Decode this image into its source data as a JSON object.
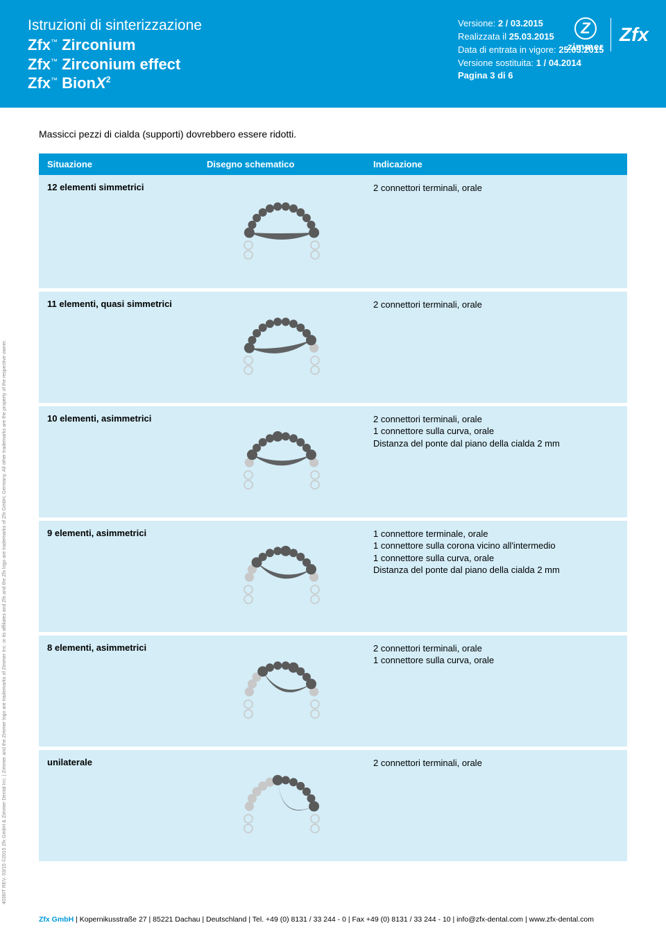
{
  "header": {
    "title": "Istruzioni di sinterizzazione",
    "products": [
      "Zfx™ Zirconium",
      "Zfx™ Zirconium effect",
      "Zfx™ BionX²"
    ],
    "version_label": "Versione:",
    "version": "2 / 03.2015",
    "realizzata_label": "Realizzata il",
    "realizzata": "25.03.2015",
    "entrata_label": "Data di entrata in vigore:",
    "entrata": "25.03.2015",
    "sost_label": "Versione sostituita:",
    "sost": "1 / 04.2014",
    "pagina": "Pagina 3 di 6",
    "zimmer": "zimmer",
    "zfx": "Zfx"
  },
  "intro": "Massicci pezzi di cialda (supporti) dovrebbero essere ridotti.",
  "table_headers": {
    "sit": "Situazione",
    "diag": "Disegno schematico",
    "ind": "Indicazione"
  },
  "rows": [
    {
      "situazione": "12 elementi simmetrici",
      "indicazione": "2 connettori terminali, orale",
      "diagram": "sym12"
    },
    {
      "situazione": "11 elementi, quasi simmetrici",
      "indicazione": "2 connettori terminali, orale",
      "diagram": "sym11"
    },
    {
      "situazione": "10 elementi, asimmetrici",
      "indicazione": "2 connettori terminali, orale\n1 connettore sulla curva, orale\nDistanza del ponte dal piano della cialda 2 mm",
      "diagram": "asym10"
    },
    {
      "situazione": "9 elementi, asimmetrici",
      "indicazione": "1 connettore terminale, orale\n1 connettore sulla corona vicino all'intermedio\n1 connettore sulla curva, orale\nDistanza del ponte dal piano della cialda 2 mm",
      "diagram": "asym9"
    },
    {
      "situazione": "8 elementi, asimmetrici",
      "indicazione": "2 connettori terminali, orale\n1 connettore sulla curva, orale",
      "diagram": "asym8"
    },
    {
      "situazione": "unilaterale",
      "indicazione": "2 connettori terminali, orale",
      "diagram": "uni"
    }
  ],
  "colors": {
    "brand": "#0099d8",
    "row_bg": "#d4edf7",
    "arch_light": "#c8c8c8",
    "arch_dark": "#5a5a5a",
    "arch_outline": "#ffffff"
  },
  "side_text": "4036IT REV. 03/15 ©2015 Zfx GmbH & Zimmer Dental Inc. | Zimmer and the Zimmer logo are trademarks of Zimmer Inc. or its affiliates and Zfx and the Zfx logo are trademarks of Zfx GmbH, Germany. All other trademarks are the property of the respective owner.",
  "footer": {
    "company": "Zfx GmbH",
    "rest": " | Kopernikusstraße 27 | 85221 Dachau | Deutschland | Tel. +49 (0) 8131 / 33 244 - 0 | Fax +49 (0) 8131 / 33 244 - 10 | info@zfx-dental.com | www.zfx-dental.com"
  }
}
